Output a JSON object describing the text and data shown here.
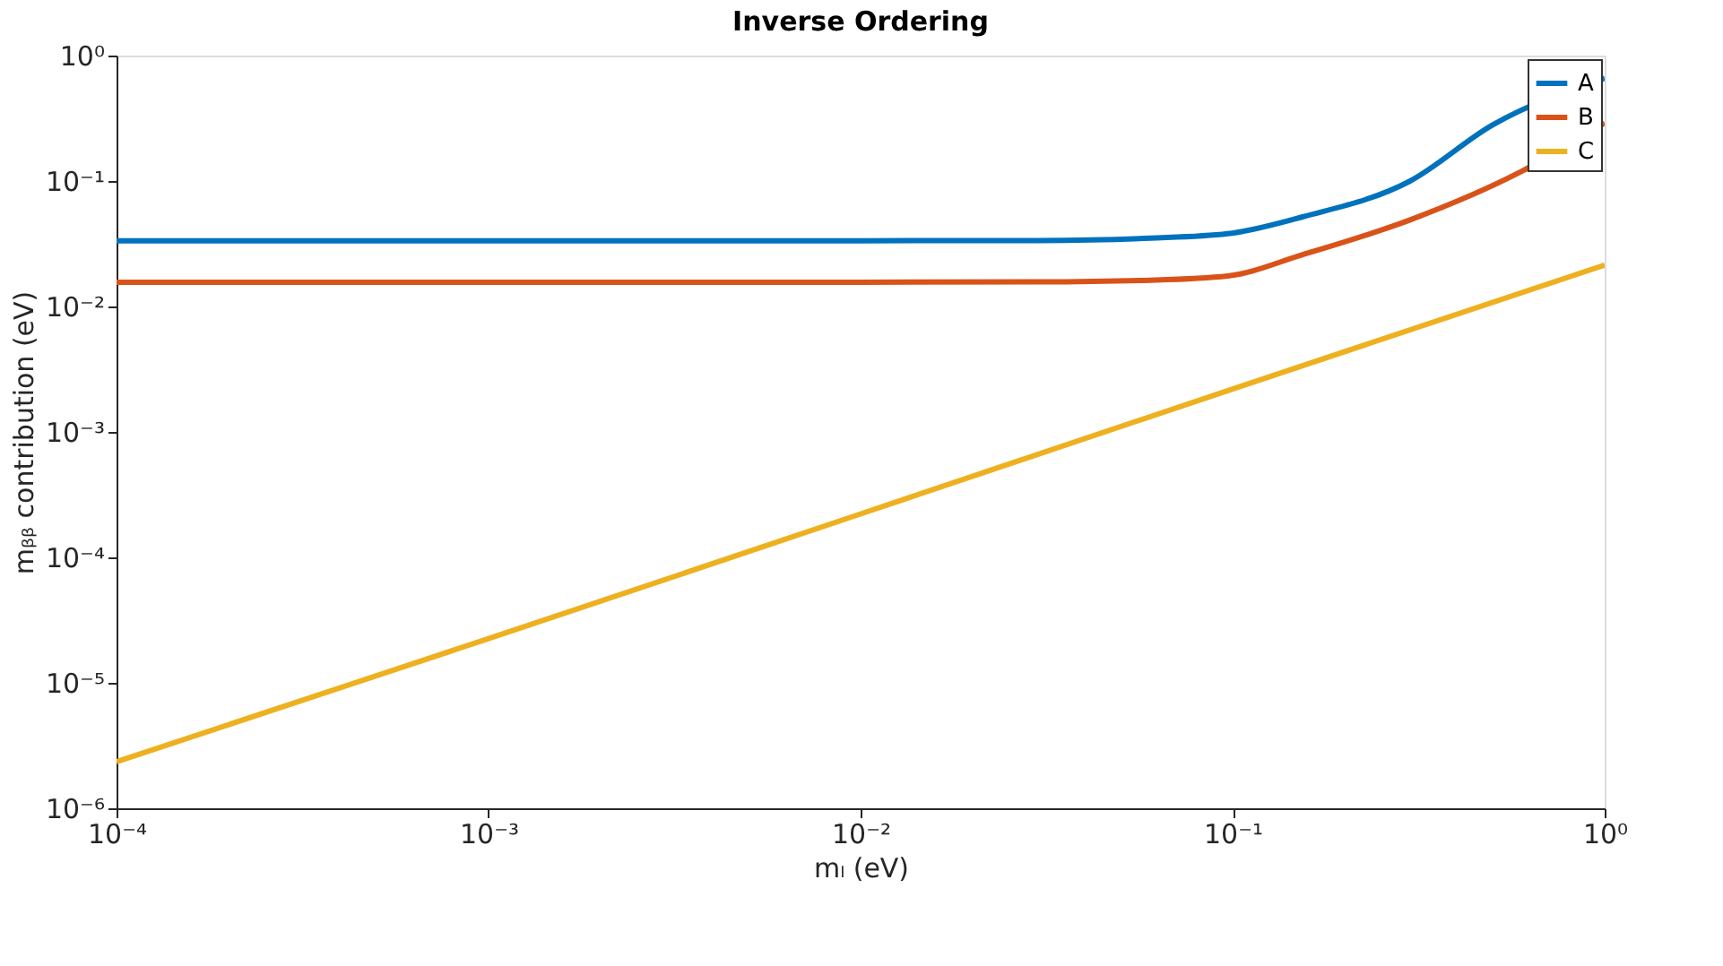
{
  "chart_data": {
    "type": "line",
    "title": "Inverse Ordering",
    "xlabel": "mₗ (eV)",
    "ylabel": "mᵦᵦ contribution (eV)",
    "log": "xy",
    "grid": false,
    "legend": "top right",
    "line_style": "solid",
    "marker": "none",
    "xlim": [
      0.0001,
      1
    ],
    "ylim": [
      1e-06,
      1
    ],
    "xticks": [
      {
        "value": 0.0001,
        "label": "10⁻⁴"
      },
      {
        "value": 0.001,
        "label": "10⁻³"
      },
      {
        "value": 0.01,
        "label": "10⁻²"
      },
      {
        "value": 0.1,
        "label": "10⁻¹"
      },
      {
        "value": 1,
        "label": "10⁰"
      }
    ],
    "yticks": [
      {
        "value": 1e-06,
        "label": "10⁻⁶"
      },
      {
        "value": 1e-05,
        "label": "10⁻⁵"
      },
      {
        "value": 0.0001,
        "label": "10⁻⁴"
      },
      {
        "value": 0.001,
        "label": "10⁻³"
      },
      {
        "value": 0.01,
        "label": "10⁻²"
      },
      {
        "value": 0.1,
        "label": "10⁻¹"
      },
      {
        "value": 1,
        "label": "10⁰"
      }
    ],
    "series": [
      {
        "name": "A",
        "color": "#0072bd",
        "x": [
          0.0001,
          0.01,
          0.03,
          0.06,
          0.097,
          0.155,
          0.3,
          0.5,
          1
        ],
        "values": [
          0.0334,
          0.0334,
          0.0335,
          0.035,
          0.038,
          0.052,
          0.1,
          0.28,
          0.66
        ]
      },
      {
        "name": "B",
        "color": "#d95319",
        "x": [
          0.0001,
          0.01,
          0.03,
          0.06,
          0.097,
          0.155,
          0.3,
          0.6,
          1
        ],
        "values": [
          0.0156,
          0.0156,
          0.0157,
          0.0162,
          0.0175,
          0.026,
          0.049,
          0.12,
          0.29
        ]
      },
      {
        "name": "C",
        "color": "#edb120",
        "x": [
          0.0001,
          0.001,
          0.01,
          0.1,
          1
        ],
        "values": [
          2.35e-06,
          2.25e-05,
          0.000222,
          0.0022,
          0.0214
        ]
      }
    ]
  }
}
